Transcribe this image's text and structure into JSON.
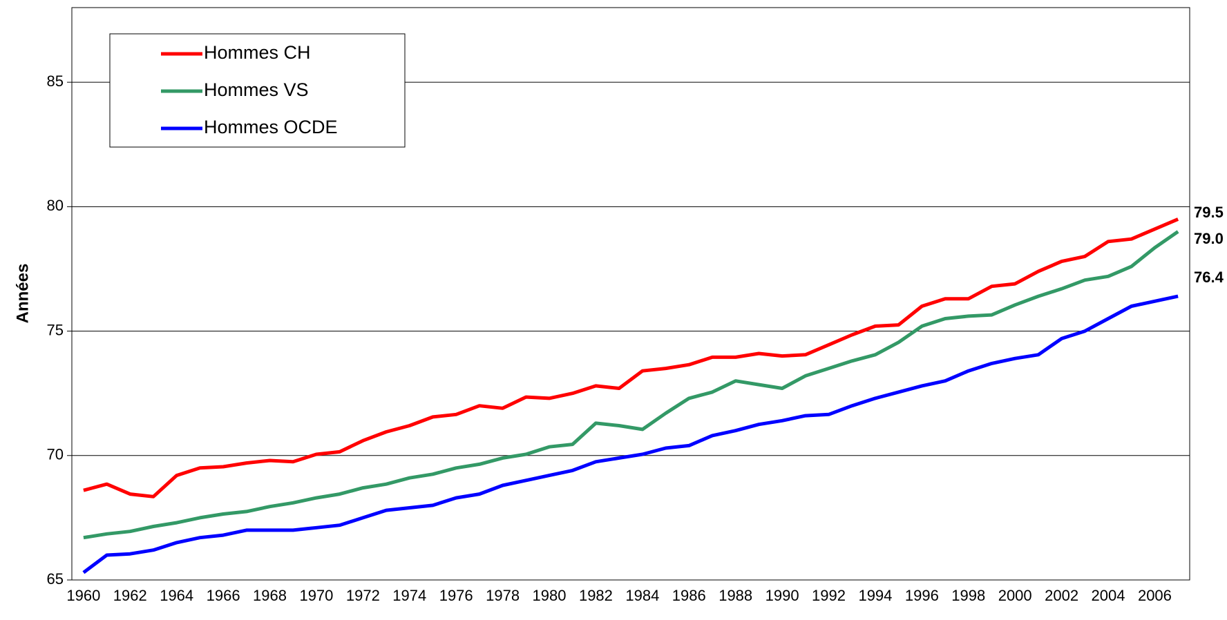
{
  "chart_data": {
    "type": "line",
    "y_label": "Années",
    "categories": [
      1960,
      null,
      1962,
      null,
      1964,
      null,
      1966,
      null,
      1968,
      null,
      1970,
      null,
      1972,
      null,
      1974,
      null,
      1976,
      null,
      1978,
      null,
      1980,
      null,
      1982,
      null,
      1984,
      null,
      1986,
      null,
      1988,
      null,
      1990,
      null,
      1992,
      null,
      1994,
      null,
      1996,
      null,
      1998,
      null,
      2000,
      null,
      2002,
      null,
      2004,
      null,
      2006,
      null
    ],
    "ylim": [
      65,
      88
    ],
    "yticks": [
      65,
      70,
      75,
      80,
      85
    ],
    "grid": true,
    "legend": "upper left",
    "series": [
      {
        "name": "Hommes CH",
        "color": "#ff0000",
        "values": [
          68.6,
          68.85,
          68.45,
          68.35,
          69.2,
          69.5,
          69.55,
          69.7,
          69.8,
          69.75,
          70.05,
          70.15,
          70.6,
          70.95,
          71.2,
          71.55,
          71.65,
          72.0,
          71.9,
          72.35,
          72.3,
          72.5,
          72.8,
          72.7,
          73.4,
          73.5,
          73.65,
          73.95,
          73.95,
          74.1,
          74.0,
          74.05,
          74.45,
          74.85,
          75.2,
          75.25,
          76.0,
          76.3,
          76.3,
          76.8,
          76.9,
          77.4,
          77.8,
          78.0,
          78.6,
          78.7,
          79.1,
          79.5
        ],
        "value_labels": [
          null,
          null,
          null,
          null,
          null,
          null,
          null,
          null,
          null,
          null,
          null,
          null,
          null,
          null,
          null,
          null,
          null,
          null,
          null,
          null,
          null,
          null,
          null,
          null,
          null,
          null,
          null,
          null,
          null,
          null,
          null,
          null,
          null,
          null,
          null,
          null,
          null,
          null,
          null,
          null,
          null,
          null,
          null,
          null,
          null,
          null,
          null,
          "79.5"
        ]
      },
      {
        "name": "Hommes VS",
        "color": "#339966",
        "values": [
          66.7,
          66.85,
          66.95,
          67.15,
          67.3,
          67.5,
          67.65,
          67.75,
          67.95,
          68.1,
          68.3,
          68.45,
          68.7,
          68.85,
          69.1,
          69.25,
          69.5,
          69.65,
          69.9,
          70.05,
          70.35,
          70.45,
          71.3,
          71.2,
          71.05,
          71.7,
          72.3,
          72.55,
          73.0,
          72.85,
          72.7,
          73.2,
          73.5,
          73.8,
          74.05,
          74.55,
          75.2,
          75.5,
          75.6,
          75.65,
          76.05,
          76.4,
          76.7,
          77.05,
          77.2,
          77.6,
          78.35,
          79.0
        ],
        "value_labels": [
          null,
          null,
          null,
          null,
          null,
          null,
          null,
          null,
          null,
          null,
          null,
          null,
          null,
          null,
          null,
          null,
          null,
          null,
          null,
          null,
          null,
          null,
          null,
          null,
          null,
          null,
          null,
          null,
          null,
          null,
          null,
          null,
          null,
          null,
          null,
          null,
          null,
          null,
          null,
          null,
          null,
          null,
          null,
          null,
          null,
          null,
          null,
          "79.0"
        ]
      },
      {
        "name": "Hommes OCDE",
        "color": "#0000ff",
        "values": [
          65.3,
          66.0,
          66.05,
          66.2,
          66.5,
          66.7,
          66.8,
          67.0,
          67.0,
          67.0,
          67.1,
          67.2,
          67.5,
          67.8,
          67.9,
          68.0,
          68.3,
          68.45,
          68.8,
          69.0,
          69.2,
          69.4,
          69.75,
          69.9,
          70.05,
          70.3,
          70.4,
          70.8,
          71.0,
          71.25,
          71.4,
          71.6,
          71.65,
          72.0,
          72.3,
          72.55,
          72.8,
          73.0,
          73.4,
          73.7,
          73.9,
          74.05,
          74.7,
          75.0,
          75.5,
          76.0,
          76.2,
          76.4
        ],
        "value_labels": [
          null,
          null,
          null,
          null,
          null,
          null,
          null,
          null,
          null,
          null,
          null,
          null,
          null,
          null,
          null,
          null,
          null,
          null,
          null,
          null,
          null,
          null,
          null,
          null,
          null,
          null,
          null,
          null,
          null,
          null,
          null,
          null,
          null,
          null,
          null,
          null,
          null,
          null,
          null,
          null,
          null,
          null,
          null,
          null,
          null,
          null,
          null,
          "76.4"
        ]
      }
    ]
  }
}
